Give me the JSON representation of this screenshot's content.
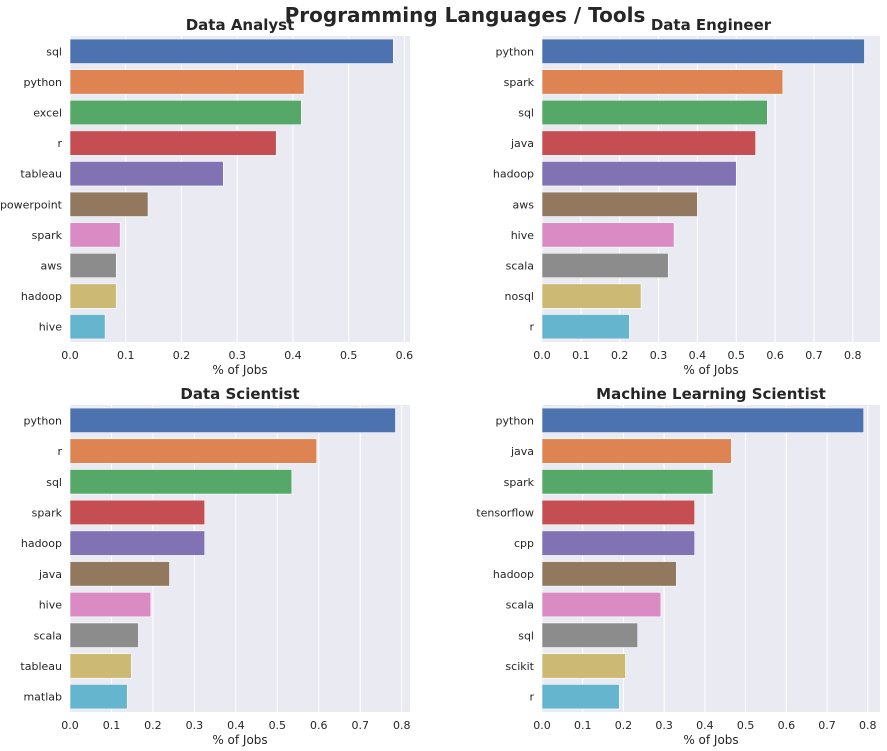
{
  "suptitle": "Programming Languages / Tools",
  "colors": [
    "#4c72b0",
    "#dd8452",
    "#55a868",
    "#c44e52",
    "#8172b3",
    "#937860",
    "#da8bc3",
    "#8c8c8c",
    "#ccb974",
    "#64b5cd"
  ],
  "chart_data": [
    {
      "type": "bar",
      "orientation": "horizontal",
      "title": "Data Analyst",
      "xlabel": "% of Jobs",
      "ylabel": "",
      "xlim": [
        0,
        0.61
      ],
      "xticks": [
        0.0,
        0.1,
        0.2,
        0.3,
        0.4,
        0.5,
        0.6
      ],
      "xtick_labels": [
        "0.0",
        "0.1",
        "0.2",
        "0.3",
        "0.4",
        "0.5",
        "0.6"
      ],
      "categories": [
        "sql",
        "python",
        "excel",
        "r",
        "tableau",
        "powerpoint",
        "spark",
        "aws",
        "hadoop",
        "hive"
      ],
      "values": [
        0.58,
        0.42,
        0.415,
        0.37,
        0.275,
        0.14,
        0.09,
        0.083,
        0.083,
        0.063
      ],
      "grid": true
    },
    {
      "type": "bar",
      "orientation": "horizontal",
      "title": "Data Engineer",
      "xlabel": "% of Jobs",
      "ylabel": "",
      "xlim": [
        0,
        0.87
      ],
      "xticks": [
        0.0,
        0.1,
        0.2,
        0.3,
        0.4,
        0.5,
        0.6,
        0.7,
        0.8
      ],
      "xtick_labels": [
        "0.0",
        "0.1",
        "0.2",
        "0.3",
        "0.4",
        "0.5",
        "0.6",
        "0.7",
        "0.8"
      ],
      "categories": [
        "python",
        "spark",
        "sql",
        "java",
        "hadoop",
        "aws",
        "hive",
        "scala",
        "nosql",
        "r"
      ],
      "values": [
        0.83,
        0.62,
        0.58,
        0.55,
        0.5,
        0.4,
        0.34,
        0.325,
        0.255,
        0.225
      ],
      "grid": true
    },
    {
      "type": "bar",
      "orientation": "horizontal",
      "title": "Data Scientist",
      "xlabel": "% of Jobs",
      "ylabel": "",
      "xlim": [
        0,
        0.82
      ],
      "xticks": [
        0.0,
        0.1,
        0.2,
        0.3,
        0.4,
        0.5,
        0.6,
        0.7,
        0.8
      ],
      "xtick_labels": [
        "0.0",
        "0.1",
        "0.2",
        "0.3",
        "0.4",
        "0.5",
        "0.6",
        "0.7",
        "0.8"
      ],
      "categories": [
        "python",
        "r",
        "sql",
        "spark",
        "hadoop",
        "java",
        "hive",
        "scala",
        "tableau",
        "matlab"
      ],
      "values": [
        0.785,
        0.595,
        0.535,
        0.325,
        0.325,
        0.24,
        0.195,
        0.165,
        0.148,
        0.138
      ],
      "grid": true
    },
    {
      "type": "bar",
      "orientation": "horizontal",
      "title": "Machine Learning Scientist",
      "xlabel": "% of Jobs",
      "ylabel": "",
      "xlim": [
        0,
        0.83
      ],
      "xticks": [
        0.0,
        0.1,
        0.2,
        0.3,
        0.4,
        0.5,
        0.6,
        0.7,
        0.8
      ],
      "xtick_labels": [
        "0.0",
        "0.1",
        "0.2",
        "0.3",
        "0.4",
        "0.5",
        "0.6",
        "0.7",
        "0.8"
      ],
      "categories": [
        "python",
        "java",
        "spark",
        "tensorflow",
        "cpp",
        "hadoop",
        "scala",
        "sql",
        "scikit",
        "r"
      ],
      "values": [
        0.79,
        0.465,
        0.42,
        0.375,
        0.375,
        0.33,
        0.292,
        0.235,
        0.205,
        0.19
      ],
      "grid": true
    }
  ]
}
